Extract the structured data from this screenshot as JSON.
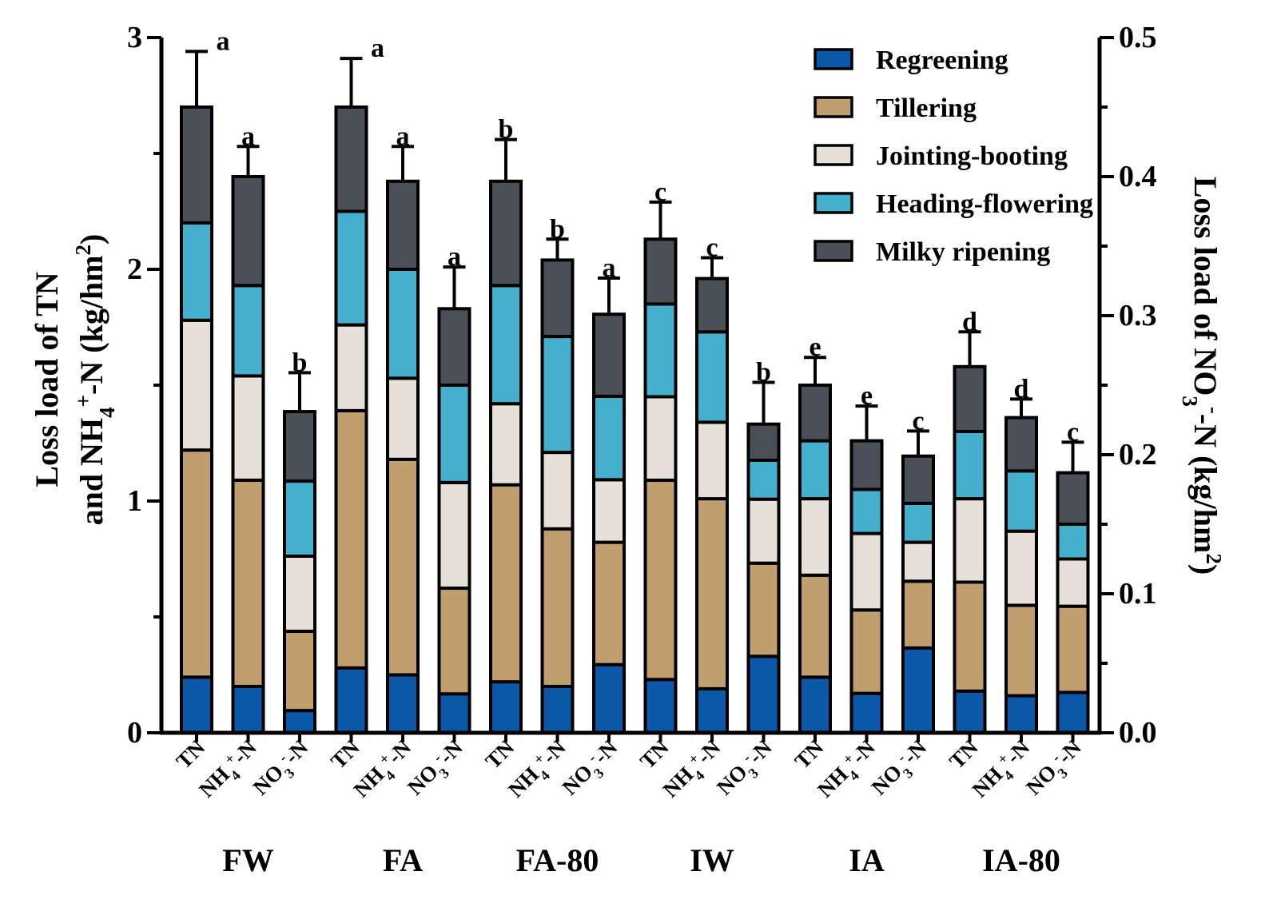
{
  "chart_data": {
    "type": "bar",
    "stacked": true,
    "title": "",
    "ylabel_left": [
      "Loss load of TN",
      "and NH4+-N (kg/hm2)"
    ],
    "ylabel_right": "Loss load of NO3−-N (kg/hm2)",
    "ylim_left": [
      0,
      3
    ],
    "ylim_right": [
      0,
      0.5
    ],
    "yticks_left": [
      "0",
      "1",
      "2",
      "3"
    ],
    "yticks_right": [
      "0.0",
      "0.1",
      "0.2",
      "0.3",
      "0.4",
      "0.5"
    ],
    "legend_position": "top-right",
    "series_names": [
      "Regreening",
      "Tillering",
      "Jointing-booting",
      "Heading-flowering",
      "Milky ripening"
    ],
    "series_colors": [
      "#0b57a8",
      "#c09e6e",
      "#e6e0d8",
      "#44b0ce",
      "#4b4f57"
    ],
    "groups": [
      "FW",
      "FA",
      "FA-80",
      "IW",
      "IA",
      "IA-80"
    ],
    "category_kinds": [
      "TN",
      "NH4",
      "NO3"
    ],
    "categories": [
      {
        "group": "FW",
        "kind": "TN",
        "axis": "left",
        "cumulative": [
          0.24,
          1.22,
          1.78,
          2.2,
          2.7
        ],
        "err": 0.24,
        "letter": "a"
      },
      {
        "group": "FW",
        "kind": "NH4",
        "axis": "left",
        "cumulative": [
          0.2,
          1.09,
          1.54,
          1.93,
          2.4
        ],
        "err": 0.13,
        "letter": "a"
      },
      {
        "group": "FW",
        "kind": "NO3",
        "axis": "right",
        "cumulative": [
          0.016,
          0.073,
          0.127,
          0.181,
          0.231
        ],
        "err": 0.028,
        "letter": "b"
      },
      {
        "group": "FA",
        "kind": "TN",
        "axis": "left",
        "cumulative": [
          0.28,
          1.39,
          1.76,
          2.25,
          2.7
        ],
        "err": 0.21,
        "letter": "a"
      },
      {
        "group": "FA",
        "kind": "NH4",
        "axis": "left",
        "cumulative": [
          0.25,
          1.18,
          1.53,
          2.0,
          2.38
        ],
        "err": 0.15,
        "letter": "a"
      },
      {
        "group": "FA",
        "kind": "NO3",
        "axis": "right",
        "cumulative": [
          0.028,
          0.104,
          0.18,
          0.25,
          0.305
        ],
        "err": 0.03,
        "letter": "a"
      },
      {
        "group": "FA-80",
        "kind": "TN",
        "axis": "left",
        "cumulative": [
          0.22,
          1.07,
          1.42,
          1.93,
          2.38
        ],
        "err": 0.18,
        "letter": "b"
      },
      {
        "group": "FA-80",
        "kind": "NH4",
        "axis": "left",
        "cumulative": [
          0.2,
          0.88,
          1.21,
          1.71,
          2.04
        ],
        "err": 0.09,
        "letter": "b"
      },
      {
        "group": "FA-80",
        "kind": "NO3",
        "axis": "right",
        "cumulative": [
          0.049,
          0.137,
          0.182,
          0.242,
          0.301
        ],
        "err": 0.026,
        "letter": "a"
      },
      {
        "group": "IW",
        "kind": "TN",
        "axis": "left",
        "cumulative": [
          0.23,
          1.09,
          1.45,
          1.85,
          2.13
        ],
        "err": 0.16,
        "letter": "c"
      },
      {
        "group": "IW",
        "kind": "NH4",
        "axis": "left",
        "cumulative": [
          0.19,
          1.01,
          1.34,
          1.73,
          1.96
        ],
        "err": 0.09,
        "letter": "c"
      },
      {
        "group": "IW",
        "kind": "NO3",
        "axis": "right",
        "cumulative": [
          0.055,
          0.122,
          0.168,
          0.196,
          0.222
        ],
        "err": 0.03,
        "letter": "b"
      },
      {
        "group": "IA",
        "kind": "TN",
        "axis": "left",
        "cumulative": [
          0.24,
          0.68,
          1.01,
          1.26,
          1.5
        ],
        "err": 0.12,
        "letter": "e"
      },
      {
        "group": "IA",
        "kind": "NH4",
        "axis": "left",
        "cumulative": [
          0.17,
          0.53,
          0.86,
          1.05,
          1.26
        ],
        "err": 0.15,
        "letter": "e"
      },
      {
        "group": "IA",
        "kind": "NO3",
        "axis": "right",
        "cumulative": [
          0.061,
          0.109,
          0.137,
          0.165,
          0.199
        ],
        "err": 0.018,
        "letter": "c"
      },
      {
        "group": "IA-80",
        "kind": "TN",
        "axis": "left",
        "cumulative": [
          0.18,
          0.65,
          1.01,
          1.3,
          1.58
        ],
        "err": 0.15,
        "letter": "d"
      },
      {
        "group": "IA-80",
        "kind": "NH4",
        "axis": "left",
        "cumulative": [
          0.16,
          0.55,
          0.87,
          1.13,
          1.36
        ],
        "err": 0.08,
        "letter": "d"
      },
      {
        "group": "IA-80",
        "kind": "NO3",
        "axis": "right",
        "cumulative": [
          0.029,
          0.091,
          0.125,
          0.15,
          0.187
        ],
        "err": 0.022,
        "letter": "c"
      }
    ]
  }
}
